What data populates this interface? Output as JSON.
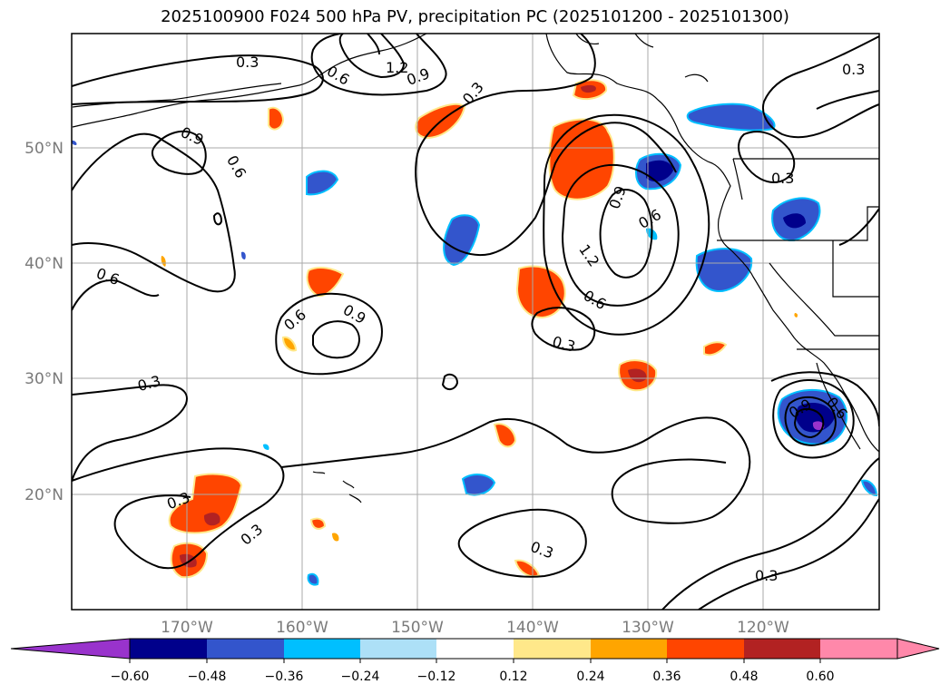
{
  "title": "2025100900 F024 500 hPa PV, precipitation PC (2025101200 - 2025101300)",
  "lat_labels": [
    "50°N",
    "40°N",
    "30°N",
    "20°N"
  ],
  "lon_labels": [
    "170°W",
    "160°W",
    "150°W",
    "140°W",
    "130°W",
    "120°W"
  ],
  "contour_labels": [
    "0.3",
    "0.6",
    "0.9",
    "1.2"
  ],
  "colorbar": {
    "ticks": [
      "−0.60",
      "−0.48",
      "−0.36",
      "−0.24",
      "−0.12",
      "0.12",
      "0.24",
      "0.36",
      "0.48",
      "0.60"
    ],
    "colors": [
      "#9933cc",
      "#00008b",
      "#3355cc",
      "#00bfff",
      "#ade0f7",
      "#ffffff",
      "#ffe88a",
      "#ffa500",
      "#ff4500",
      "#b22222",
      "#ff88aa"
    ]
  },
  "colors": {
    "contour": "#000000",
    "grid": "#aaaaaa",
    "coast": "#000000"
  }
}
